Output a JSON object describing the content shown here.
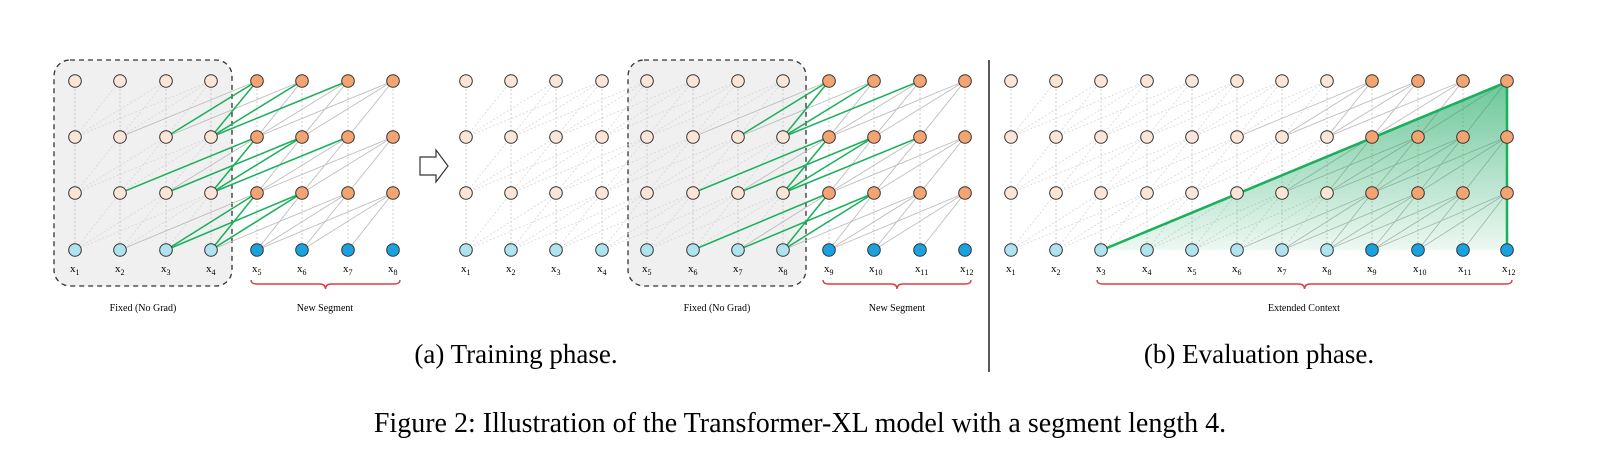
{
  "panels": [
    {
      "caption": "(a) Training phase.",
      "segments": [
        {
          "tokens": [
            "1",
            "2",
            "3",
            "4",
            "5",
            "6",
            "7",
            "8"
          ]
        },
        {
          "tokens": [
            "1",
            "2",
            "3",
            "4",
            "5",
            "6",
            "7",
            "8",
            "9",
            "10",
            "11",
            "12"
          ]
        }
      ],
      "braces": [
        "Fixed (No Grad)",
        "New Segment"
      ]
    },
    {
      "caption": "(b) Evaluation phase.",
      "tokens": [
        "1",
        "2",
        "3",
        "4",
        "5",
        "6",
        "7",
        "8",
        "9",
        "10",
        "11",
        "12"
      ],
      "brace": "Extended Context"
    }
  ],
  "figure_caption": "Figure 2: Illustration of the Transformer-XL model with a segment length 4.",
  "colors": {
    "node_light": "#fbe5d6",
    "node_dark": "#f4a470",
    "input_light": "#aee3ef",
    "input_dark": "#1aa2e0",
    "attention": "#19b05a",
    "grid": "#c8c8c8",
    "brace": "#d94040",
    "shade": "#ececec"
  }
}
